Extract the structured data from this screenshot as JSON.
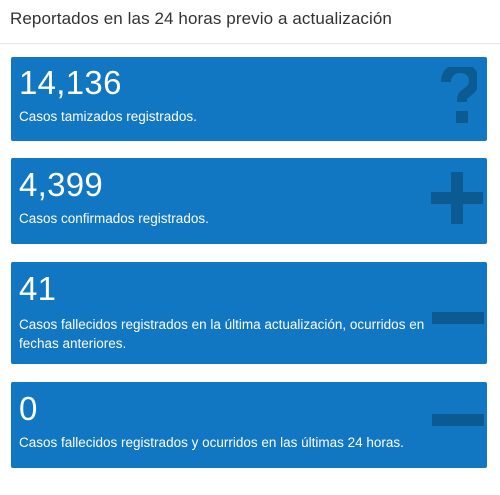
{
  "header": {
    "title": "Reportados en las 24 horas previo a actualización"
  },
  "cards": [
    {
      "value": "14,136",
      "label": "Casos tamizados registrados.",
      "icon": "question-icon"
    },
    {
      "value": "4,399",
      "label": "Casos confirmados registrados.",
      "icon": "plus-icon"
    },
    {
      "value": "41",
      "label": "Casos fallecidos registrados en la última actualización, ocurridos en fechas anteriores.",
      "icon": "minus-icon"
    },
    {
      "value": "0",
      "label": "Casos fallecidos registrados y ocurridos en las últimas 24 horas.",
      "icon": "minus-icon"
    }
  ],
  "colors": {
    "card_background": "#1177c2",
    "icon_color": "#0b5a92",
    "header_text": "#333333",
    "card_text": "#ffffff"
  }
}
